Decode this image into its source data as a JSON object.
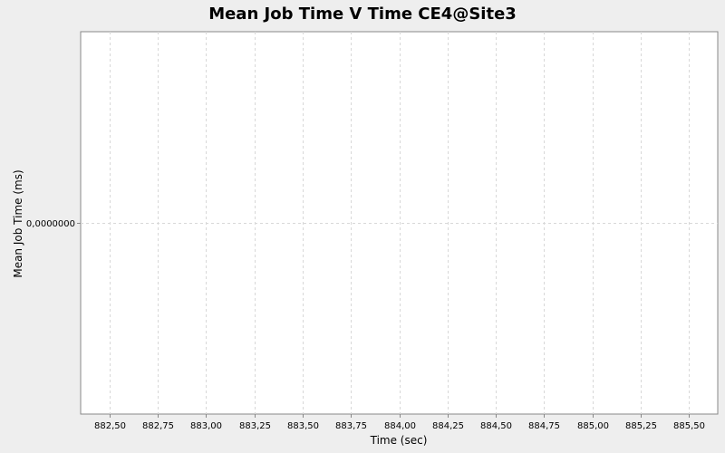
{
  "chart_data": {
    "type": "line",
    "title": "Mean Job Time V Time CE4@Site3",
    "xlabel": "Time (sec)",
    "ylabel": "Mean Job Time (ms)",
    "x_ticks": [
      "882,50",
      "882,75",
      "883,00",
      "883,25",
      "883,50",
      "883,75",
      "884,00",
      "884,25",
      "884,50",
      "884,75",
      "885,00",
      "885,25",
      "885,50"
    ],
    "x_tick_values": [
      882.5,
      882.75,
      883.0,
      883.25,
      883.5,
      883.75,
      884.0,
      884.25,
      884.5,
      884.75,
      885.0,
      885.25,
      885.5
    ],
    "y_ticks": [
      "0,0000000"
    ],
    "y_tick_values": [
      0
    ],
    "xlim": [
      882.35,
      885.65
    ],
    "ylim": [
      -1,
      1
    ],
    "series": [],
    "grid": true,
    "legend": "none"
  },
  "colors": {
    "page_background": "#eeeeee",
    "plot_background": "#ffffff",
    "gridline": "#d8d8d8",
    "axis": "#888888"
  }
}
